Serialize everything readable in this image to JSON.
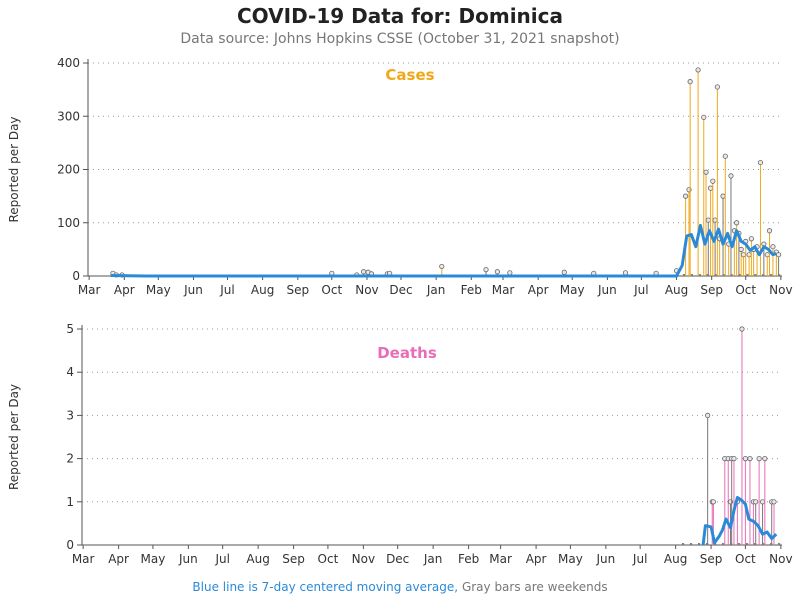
{
  "title": "COVID-19 Data for: Dominica",
  "subtitle": "Data source: Johns Hopkins CSSE (October 31, 2021 snapshot)",
  "footer": {
    "blue_part": "Blue line is 7-day centered moving average,",
    "gray_part": "Gray bars are weekends"
  },
  "colors": {
    "cases": "#f0a818",
    "deaths": "#e86cb8",
    "average": "#2b8ad8",
    "weekend": "#777777"
  },
  "chart_data": [
    {
      "type": "line",
      "title": "Cases",
      "ylabel": "Reported per Day",
      "ylim": [
        0,
        400
      ],
      "yticks": [
        "0",
        "100",
        "200",
        "300",
        "400"
      ],
      "xticks": [
        "Mar",
        "Apr",
        "May",
        "Jun",
        "Jul",
        "Aug",
        "Sep",
        "Oct",
        "Nov",
        "Dec",
        "Jan",
        "Feb",
        "Mar",
        "Apr",
        "May",
        "Jun",
        "Jul",
        "Aug",
        "Sep",
        "Oct",
        "Nov"
      ],
      "grid": "horizontal dotted",
      "spikes": [
        {
          "x": "2020-03-22",
          "y": 5
        },
        {
          "x": "2020-03-25",
          "y": 2
        },
        {
          "x": "2020-03-30",
          "y": 2
        },
        {
          "x": "2020-10-01",
          "y": 5
        },
        {
          "x": "2020-10-23",
          "y": 2
        },
        {
          "x": "2020-10-29",
          "y": 8
        },
        {
          "x": "2020-11-02",
          "y": 7
        },
        {
          "x": "2020-11-05",
          "y": 4
        },
        {
          "x": "2020-11-19",
          "y": 4
        },
        {
          "x": "2020-11-21",
          "y": 5
        },
        {
          "x": "2021-01-06",
          "y": 18
        },
        {
          "x": "2021-02-14",
          "y": 12
        },
        {
          "x": "2021-02-24",
          "y": 8
        },
        {
          "x": "2021-03-07",
          "y": 6
        },
        {
          "x": "2021-04-24",
          "y": 7
        },
        {
          "x": "2021-05-20",
          "y": 5
        },
        {
          "x": "2021-06-17",
          "y": 6
        },
        {
          "x": "2021-07-14",
          "y": 5
        },
        {
          "x": "2021-08-01",
          "y": 10
        },
        {
          "x": "2021-08-09",
          "y": 150
        },
        {
          "x": "2021-08-12",
          "y": 162
        },
        {
          "x": "2021-08-13",
          "y": 365
        },
        {
          "x": "2021-08-20",
          "y": 387
        },
        {
          "x": "2021-08-25",
          "y": 298
        },
        {
          "x": "2021-08-27",
          "y": 195
        },
        {
          "x": "2021-08-29",
          "y": 105
        },
        {
          "x": "2021-08-31",
          "y": 165
        },
        {
          "x": "2021-09-02",
          "y": 178
        },
        {
          "x": "2021-09-04",
          "y": 105
        },
        {
          "x": "2021-09-06",
          "y": 355
        },
        {
          "x": "2021-09-08",
          "y": 70
        },
        {
          "x": "2021-09-11",
          "y": 150
        },
        {
          "x": "2021-09-13",
          "y": 225
        },
        {
          "x": "2021-09-16",
          "y": 60
        },
        {
          "x": "2021-09-18",
          "y": 188
        },
        {
          "x": "2021-09-21",
          "y": 85
        },
        {
          "x": "2021-09-23",
          "y": 100
        },
        {
          "x": "2021-09-25",
          "y": 80
        },
        {
          "x": "2021-09-27",
          "y": 50
        },
        {
          "x": "2021-09-29",
          "y": 40
        },
        {
          "x": "2021-10-01",
          "y": 65
        },
        {
          "x": "2021-10-04",
          "y": 40
        },
        {
          "x": "2021-10-06",
          "y": 70
        },
        {
          "x": "2021-10-08",
          "y": 50
        },
        {
          "x": "2021-10-11",
          "y": 55
        },
        {
          "x": "2021-10-14",
          "y": 213
        },
        {
          "x": "2021-10-17",
          "y": 60
        },
        {
          "x": "2021-10-20",
          "y": 40
        },
        {
          "x": "2021-10-22",
          "y": 85
        },
        {
          "x": "2021-10-25",
          "y": 55
        },
        {
          "x": "2021-10-28",
          "y": 45
        },
        {
          "x": "2021-10-30",
          "y": 40
        }
      ],
      "average": [
        {
          "x": "2020-03-20",
          "y": 1
        },
        {
          "x": "2020-04-20",
          "y": 0
        },
        {
          "x": "2021-08-01",
          "y": 0
        },
        {
          "x": "2021-08-06",
          "y": 20
        },
        {
          "x": "2021-08-10",
          "y": 75
        },
        {
          "x": "2021-08-14",
          "y": 78
        },
        {
          "x": "2021-08-18",
          "y": 55
        },
        {
          "x": "2021-08-22",
          "y": 95
        },
        {
          "x": "2021-08-26",
          "y": 60
        },
        {
          "x": "2021-08-30",
          "y": 85
        },
        {
          "x": "2021-09-03",
          "y": 65
        },
        {
          "x": "2021-09-07",
          "y": 88
        },
        {
          "x": "2021-09-11",
          "y": 60
        },
        {
          "x": "2021-09-15",
          "y": 80
        },
        {
          "x": "2021-09-19",
          "y": 55
        },
        {
          "x": "2021-09-23",
          "y": 85
        },
        {
          "x": "2021-09-27",
          "y": 65
        },
        {
          "x": "2021-10-01",
          "y": 60
        },
        {
          "x": "2021-10-05",
          "y": 48
        },
        {
          "x": "2021-10-09",
          "y": 55
        },
        {
          "x": "2021-10-13",
          "y": 40
        },
        {
          "x": "2021-10-17",
          "y": 55
        },
        {
          "x": "2021-10-21",
          "y": 50
        },
        {
          "x": "2021-10-25",
          "y": 40
        },
        {
          "x": "2021-10-28",
          "y": 42
        }
      ]
    },
    {
      "type": "line",
      "title": "Deaths",
      "ylabel": "Reported per Day",
      "ylim": [
        0,
        5
      ],
      "yticks": [
        "0",
        "1",
        "2",
        "3",
        "4",
        "5"
      ],
      "xticks": [
        "Mar",
        "Apr",
        "May",
        "Jun",
        "Jul",
        "Aug",
        "Sep",
        "Oct",
        "Nov",
        "Dec",
        "Jan",
        "Feb",
        "Mar",
        "Apr",
        "May",
        "Jun",
        "Jul",
        "Aug",
        "Sep",
        "Oct",
        "Nov"
      ],
      "grid": "horizontal dotted",
      "spikes": [
        {
          "x": "2021-08-29",
          "y": 3
        },
        {
          "x": "2021-09-02",
          "y": 1
        },
        {
          "x": "2021-09-03",
          "y": 1
        },
        {
          "x": "2021-09-13",
          "y": 2
        },
        {
          "x": "2021-09-16",
          "y": 2
        },
        {
          "x": "2021-09-18",
          "y": 1
        },
        {
          "x": "2021-09-19",
          "y": 2
        },
        {
          "x": "2021-09-21",
          "y": 2
        },
        {
          "x": "2021-09-24",
          "y": 1
        },
        {
          "x": "2021-09-28",
          "y": 5
        },
        {
          "x": "2021-10-01",
          "y": 2
        },
        {
          "x": "2021-10-05",
          "y": 2
        },
        {
          "x": "2021-10-08",
          "y": 1
        },
        {
          "x": "2021-10-10",
          "y": 1
        },
        {
          "x": "2021-10-13",
          "y": 2
        },
        {
          "x": "2021-10-16",
          "y": 1
        },
        {
          "x": "2021-10-18",
          "y": 2
        },
        {
          "x": "2021-10-24",
          "y": 1
        },
        {
          "x": "2021-10-26",
          "y": 1
        }
      ],
      "average": [
        {
          "x": "2021-08-25",
          "y": 0
        },
        {
          "x": "2021-08-27",
          "y": 0.45
        },
        {
          "x": "2021-09-01",
          "y": 0.42
        },
        {
          "x": "2021-09-04",
          "y": 0.05
        },
        {
          "x": "2021-09-08",
          "y": 0.2
        },
        {
          "x": "2021-09-11",
          "y": 0.35
        },
        {
          "x": "2021-09-14",
          "y": 0.6
        },
        {
          "x": "2021-09-18",
          "y": 0.4
        },
        {
          "x": "2021-09-21",
          "y": 0.8
        },
        {
          "x": "2021-09-24",
          "y": 1.1
        },
        {
          "x": "2021-09-27",
          "y": 1.05
        },
        {
          "x": "2021-10-01",
          "y": 0.95
        },
        {
          "x": "2021-10-04",
          "y": 0.6
        },
        {
          "x": "2021-10-08",
          "y": 0.55
        },
        {
          "x": "2021-10-12",
          "y": 0.45
        },
        {
          "x": "2021-10-16",
          "y": 0.25
        },
        {
          "x": "2021-10-20",
          "y": 0.3
        },
        {
          "x": "2021-10-24",
          "y": 0.15
        },
        {
          "x": "2021-10-28",
          "y": 0.25
        }
      ]
    }
  ]
}
